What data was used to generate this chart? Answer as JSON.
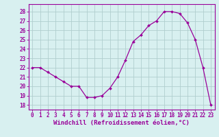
{
  "hours": [
    0,
    1,
    2,
    3,
    4,
    5,
    6,
    7,
    8,
    9,
    10,
    11,
    12,
    13,
    14,
    15,
    16,
    17,
    18,
    19,
    20,
    21,
    22,
    23
  ],
  "windchill": [
    22,
    22,
    21.5,
    21,
    20.5,
    20,
    20,
    18.8,
    18.8,
    19,
    19.8,
    21,
    22.8,
    24.8,
    25.5,
    26.5,
    27,
    28,
    28,
    27.8,
    26.8,
    25,
    22,
    18
  ],
  "line_color": "#990099",
  "marker_color": "#990099",
  "bg_color": "#d8f0f0",
  "grid_color": "#b0cece",
  "xlabel": "Windchill (Refroidissement éolien,°C)",
  "ylabel_ticks": [
    18,
    19,
    20,
    21,
    22,
    23,
    24,
    25,
    26,
    27,
    28
  ],
  "ylim": [
    17.5,
    28.8
  ],
  "xlim": [
    -0.5,
    23.5
  ],
  "tick_fontsize": 5.5,
  "label_fontsize": 6.5
}
